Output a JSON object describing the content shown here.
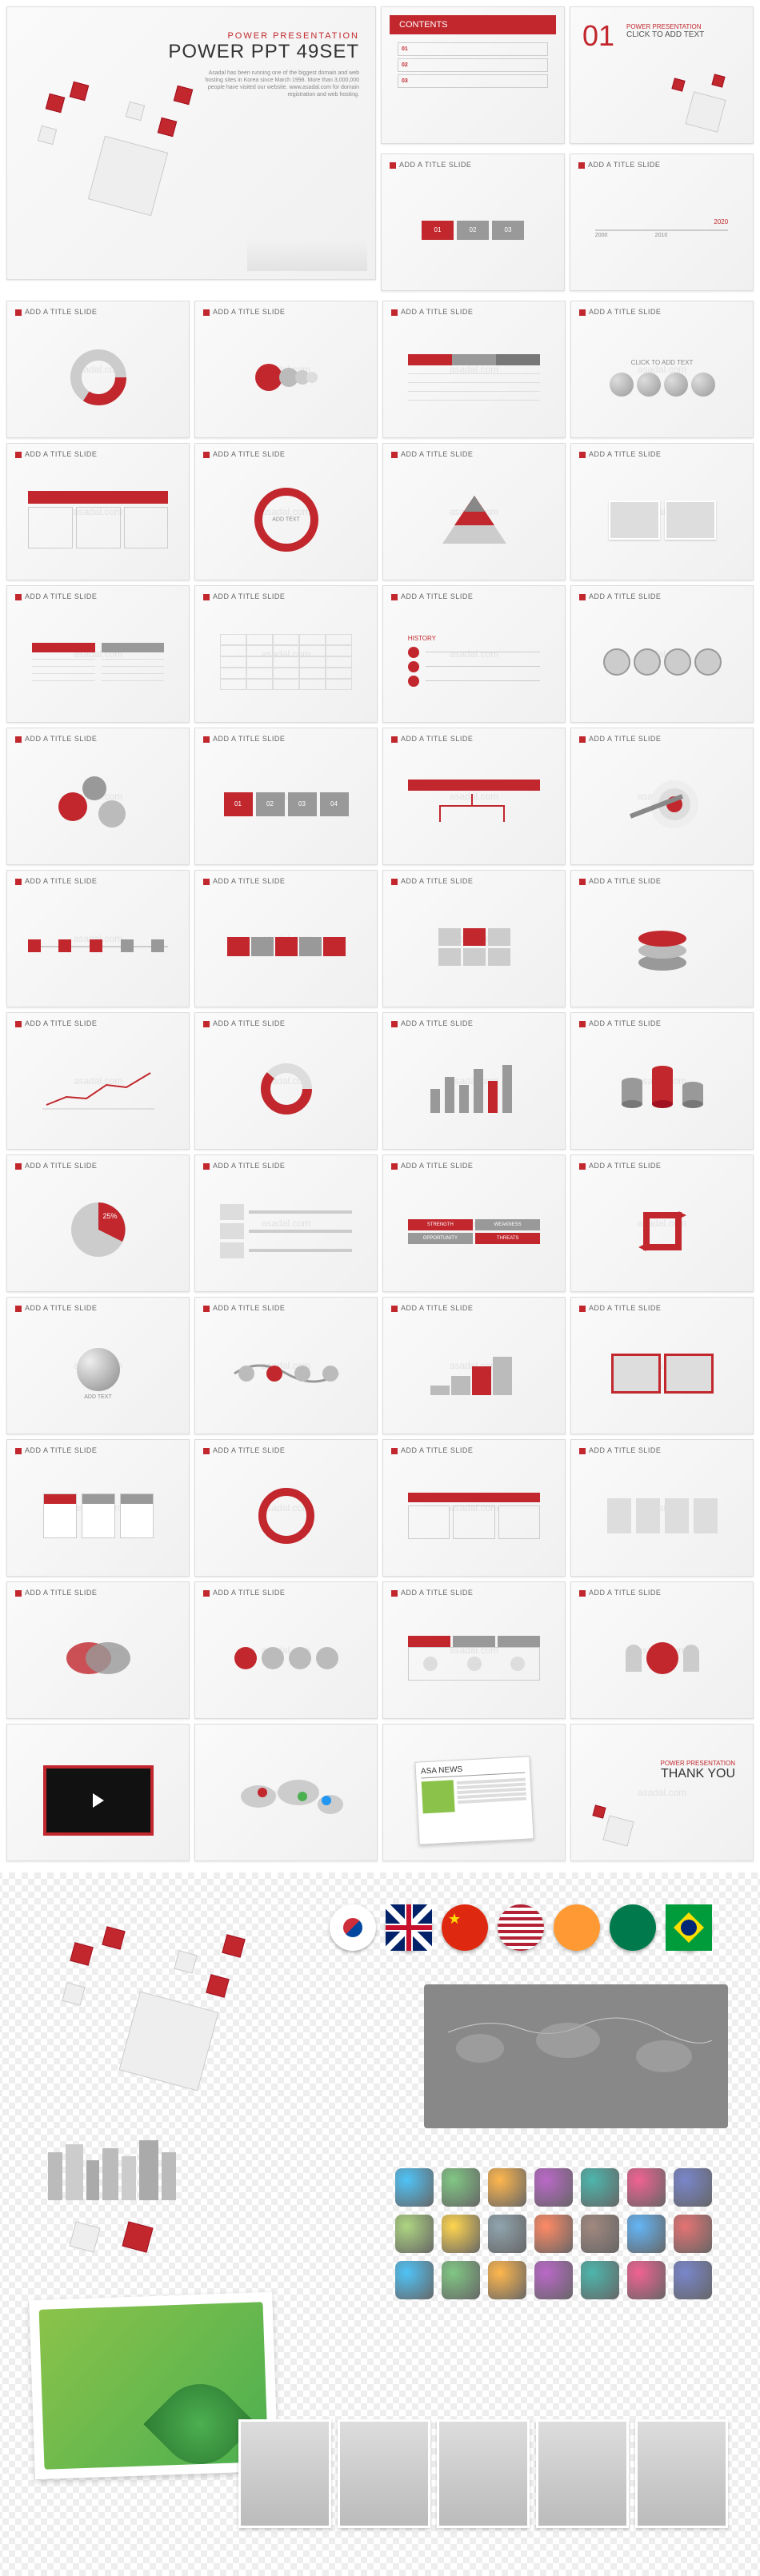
{
  "colors": {
    "accent": "#c1272d",
    "gray": "#999",
    "bg": "#f5f5f5"
  },
  "title_slide": {
    "subtitle": "POWER PRESENTATION",
    "title": "POWER PPT 49SET",
    "desc": "Asadal has been running one of the biggest domain and web hosting sites in Korea since March 1998. More than 3,000,000 people have visited our website. www.asadal.com for domain registration and web hosting."
  },
  "contents_slide": {
    "header": "CONTENTS",
    "items": [
      "01",
      "02",
      "03"
    ]
  },
  "section_slide": {
    "num": "01",
    "sub": "POWER PRESENTATION",
    "title": "CLICK TO ADD TEXT"
  },
  "slide_header": "ADD A TITLE SLIDE",
  "watermark": "asadal.com",
  "rows": [
    [
      {
        "t": "timeline",
        "labels": [
          "2000",
          "2010",
          "2020"
        ]
      },
      {
        "t": "steps",
        "labels": [
          "01",
          "02",
          "03"
        ]
      }
    ],
    [
      {
        "t": "donut"
      },
      {
        "t": "circles"
      },
      {
        "t": "table3"
      },
      {
        "t": "spheres",
        "label": "CLICK TO ADD TEXT"
      }
    ],
    [
      {
        "t": "table3red"
      },
      {
        "t": "ring",
        "label": "ADD TEXT"
      },
      {
        "t": "pyramid"
      },
      {
        "t": "photos2"
      }
    ],
    [
      {
        "t": "list2"
      },
      {
        "t": "grid"
      },
      {
        "t": "history",
        "label": "HISTORY"
      },
      {
        "t": "hex"
      }
    ],
    [
      {
        "t": "gears"
      },
      {
        "t": "steps4",
        "labels": [
          "01",
          "02",
          "03",
          "04"
        ]
      },
      {
        "t": "flow"
      },
      {
        "t": "target"
      }
    ],
    [
      {
        "t": "timeline5"
      },
      {
        "t": "process"
      },
      {
        "t": "blocks"
      },
      {
        "t": "layers"
      }
    ],
    [
      {
        "t": "line"
      },
      {
        "t": "donut2"
      },
      {
        "t": "bars"
      },
      {
        "t": "cylinders"
      }
    ],
    [
      {
        "t": "pie",
        "label": "25%"
      },
      {
        "t": "rows"
      },
      {
        "t": "swot",
        "labels": [
          "STRENGTH",
          "WEAKNESS",
          "OPPORTUNITY",
          "THREATS"
        ]
      },
      {
        "t": "cycle"
      }
    ],
    [
      {
        "t": "sphere",
        "label": "ADD TEXT"
      },
      {
        "t": "wave"
      },
      {
        "t": "stairs"
      },
      {
        "t": "frames"
      }
    ],
    [
      {
        "t": "cards"
      },
      {
        "t": "ring2"
      },
      {
        "t": "boxes3"
      },
      {
        "t": "people"
      }
    ],
    [
      {
        "t": "venn"
      },
      {
        "t": "icons"
      },
      {
        "t": "tabs"
      },
      {
        "t": "figure"
      }
    ],
    [
      {
        "t": "video"
      },
      {
        "t": "worldmap"
      },
      {
        "t": "news",
        "label": "ASA NEWS"
      },
      {
        "t": "thankyou",
        "sub": "POWER PRESENTATION",
        "main": "THANK YOU"
      }
    ]
  ],
  "flags": [
    "kr",
    "uk",
    "cn",
    "us",
    "in",
    "za",
    "br"
  ],
  "flag_colors": {
    "kr": "#fff",
    "uk": "#012169",
    "cn": "#de2910",
    "us": "#3c3b6e",
    "in": "#ff9933",
    "za": "#007a4d",
    "br": "#009c3b"
  }
}
